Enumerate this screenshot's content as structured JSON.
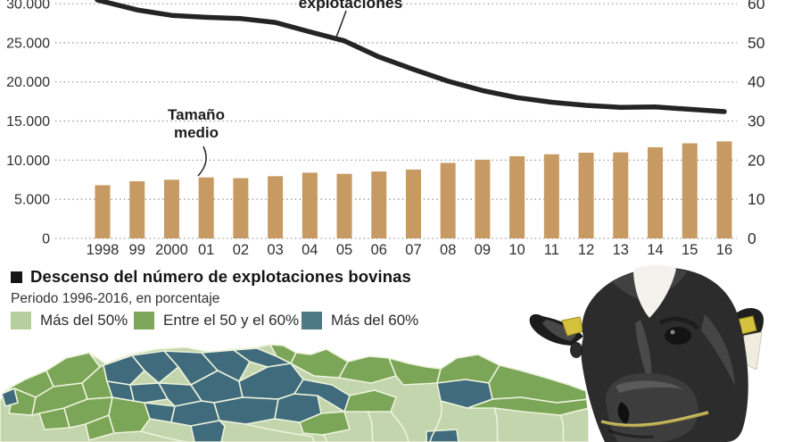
{
  "chart_data": [
    {
      "type": "line+bar",
      "categories": [
        "1998",
        "99",
        "2000",
        "01",
        "02",
        "03",
        "04",
        "05",
        "06",
        "07",
        "08",
        "09",
        "10",
        "11",
        "12",
        "13",
        "14",
        "15",
        "16"
      ],
      "series": [
        {
          "name": "explotaciones",
          "type": "line",
          "axis": "left",
          "color": "#242424",
          "values": [
            30300,
            29200,
            28500,
            28250,
            28100,
            27600,
            26400,
            25250,
            23200,
            21600,
            20100,
            18900,
            18000,
            17400,
            17000,
            16750,
            16800,
            16500,
            16200
          ]
        },
        {
          "name": "Tamaño medio",
          "type": "bar",
          "axis": "right",
          "color": "#c69a62",
          "values": [
            13.6,
            14.6,
            15.0,
            15.6,
            15.4,
            15.9,
            16.8,
            16.5,
            17.1,
            17.6,
            19.3,
            20.1,
            21.0,
            21.5,
            21.9,
            22.0,
            23.3,
            24.3,
            24.8
          ]
        }
      ],
      "left_axis": {
        "ticks": [
          "30.000",
          "25.000",
          "20.000",
          "15.000",
          "10.000",
          "5.000",
          "0"
        ],
        "values": [
          30000,
          25000,
          20000,
          15000,
          10000,
          5000,
          0
        ],
        "max": 30000
      },
      "right_axis": {
        "ticks": [
          "60",
          "50",
          "40",
          "30",
          "20",
          "10",
          "0"
        ],
        "values": [
          60,
          50,
          40,
          30,
          20,
          10,
          0
        ],
        "max": 60
      },
      "grid": "horizontal-dotted",
      "grid_color": "#969696",
      "annotations": {
        "line_label": "explotaciones",
        "bar_label_line1": "Tamaño",
        "bar_label_line2": "medio"
      }
    },
    {
      "type": "choropleth",
      "title": "Descenso del número de explotaciones bovinas",
      "subtitle": "Periodo 1996-2016, en porcentaje",
      "bullet_color": "#161616",
      "legend": [
        {
          "label": "Más del 50%",
          "color": "#b7cf9e"
        },
        {
          "label": "Entre el 50 y el 60%",
          "color": "#7ea75b"
        },
        {
          "label": "Más del 60%",
          "color": "#4e7884"
        }
      ],
      "map_colors": {
        "cat1": "#c2d5ac",
        "cat2": "#7ba557",
        "cat3": "#3f6b7c",
        "border": "#edf3dc"
      }
    }
  ]
}
